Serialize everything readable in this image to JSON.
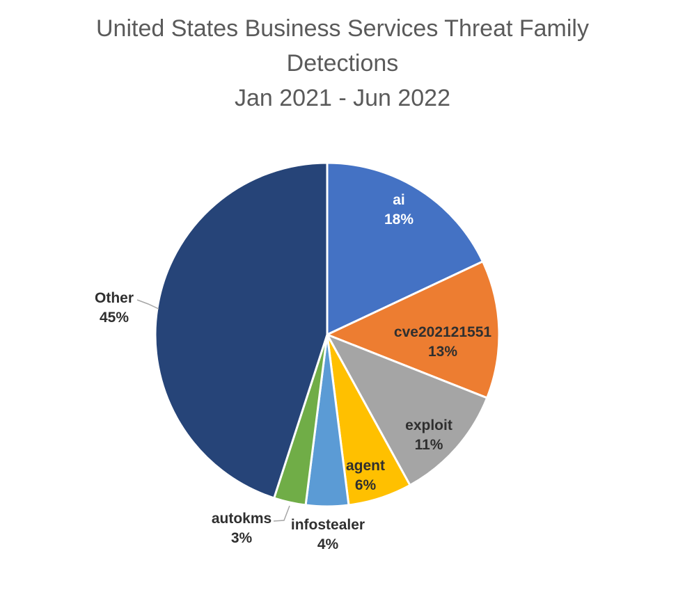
{
  "page": {
    "background_color": "#FFFFFF"
  },
  "chart_title": {
    "lines": [
      "United States Business Services Threat Family",
      "Detections",
      "Jan 2021 - Jun 2022"
    ],
    "color": "#5A5A5A"
  },
  "chart_data": {
    "type": "pie",
    "title": "United States Business Services Threat Family Detections",
    "subtitle": "Jan 2021 - Jun 2022",
    "unit": "percent",
    "start_angle_deg": 0,
    "direction": "clockwise",
    "legend": "none",
    "data_labels": "category-name-and-percentage",
    "slice_border_color": "#FFFFFF",
    "leader_line_color": "#A6A6A6",
    "categories": [
      "ai",
      "cve202121551",
      "exploit",
      "agent",
      "infostealer",
      "autokms",
      "Other"
    ],
    "values": [
      18,
      13,
      11,
      6,
      4,
      3,
      45
    ],
    "slices": [
      {
        "label": "ai",
        "value": 18,
        "pct_label": "18%",
        "color": "#4472C4",
        "text_color": "#FFFFFF",
        "label_placement": "inside"
      },
      {
        "label": "cve202121551",
        "value": 13,
        "pct_label": "13%",
        "color": "#ED7D31",
        "text_color": "#2F2F2F",
        "label_placement": "inside"
      },
      {
        "label": "exploit",
        "value": 11,
        "pct_label": "11%",
        "color": "#A5A5A5",
        "text_color": "#2F2F2F",
        "label_placement": "inside"
      },
      {
        "label": "agent",
        "value": 6,
        "pct_label": "6%",
        "color": "#FFC000",
        "text_color": "#2F2F2F",
        "label_placement": "inside"
      },
      {
        "label": "infostealer",
        "value": 4,
        "pct_label": "4%",
        "color": "#5B9BD5",
        "text_color": "#2F2F2F",
        "label_placement": "outside"
      },
      {
        "label": "autokms",
        "value": 3,
        "pct_label": "3%",
        "color": "#70AD47",
        "text_color": "#2F2F2F",
        "label_placement": "outside"
      },
      {
        "label": "Other",
        "value": 45,
        "pct_label": "45%",
        "color": "#264478",
        "text_color": "#2F2F2F",
        "label_placement": "outside"
      }
    ]
  }
}
